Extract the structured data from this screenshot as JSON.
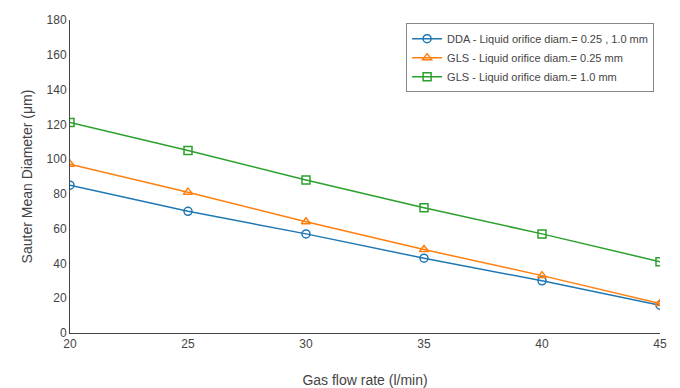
{
  "chart_data": {
    "type": "line",
    "x": [
      20,
      25,
      30,
      35,
      40,
      45
    ],
    "series": [
      {
        "name": "DDA - Liquid orifice diam.= 0.25 , 1.0 mm",
        "values": [
          85,
          70,
          57,
          43,
          30,
          16
        ],
        "marker": "circle"
      },
      {
        "name": "GLS - Liquid orifice diam.= 0.25 mm",
        "values": [
          97,
          81,
          64,
          48,
          33,
          17
        ],
        "marker": "triangle"
      },
      {
        "name": "GLS - Liquid orifice diam.= 1.0 mm",
        "values": [
          121,
          105,
          88,
          72,
          57,
          41
        ],
        "marker": "square"
      }
    ],
    "xlabel": "Gas flow rate (l/min)",
    "ylabel": "Sauter Mean Diameter (μm)",
    "xlim": [
      20,
      45
    ],
    "ylim": [
      0,
      180
    ],
    "xticks": [
      20,
      25,
      30,
      35,
      40,
      45
    ],
    "yticks": [
      0,
      20,
      40,
      60,
      80,
      100,
      120,
      140,
      160,
      180
    ],
    "grid": false,
    "legend": "upper right"
  }
}
